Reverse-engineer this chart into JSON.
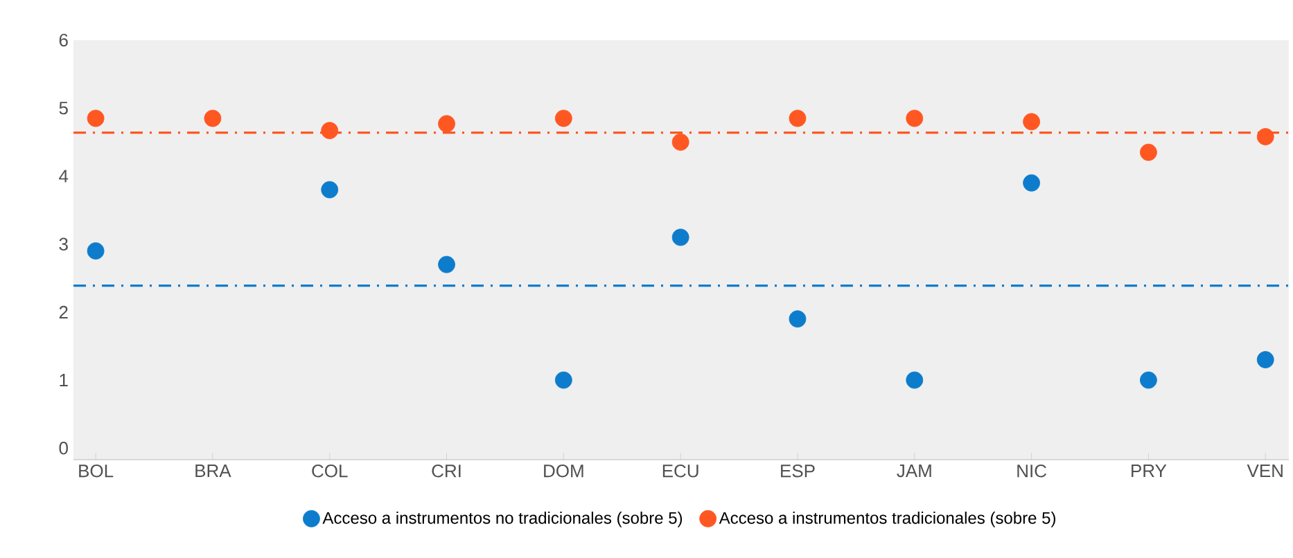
{
  "chart_data": {
    "type": "scatter",
    "categories": [
      "BOL",
      "BRA",
      "COL",
      "CRI",
      "DOM",
      "ECU",
      "ESP",
      "JAM",
      "NIC",
      "PRY",
      "VEN"
    ],
    "series": [
      {
        "name": "Acceso a instrumentos no tradicionales (sobre 5)",
        "color": "#0e7ccc",
        "values": [
          2.9,
          null,
          3.8,
          2.7,
          1.0,
          3.1,
          1.9,
          1.0,
          3.9,
          1.0,
          1.3
        ]
      },
      {
        "name": "Acceso a instrumentos tradicionales (sobre 5)",
        "color": "#ff5722",
        "values": [
          4.85,
          4.85,
          4.67,
          4.77,
          4.85,
          4.5,
          4.85,
          4.85,
          4.8,
          4.35,
          4.58
        ]
      }
    ],
    "ylim": [
      -0.17,
      6
    ],
    "yticks": [
      0,
      1,
      2,
      3,
      4,
      5,
      6
    ],
    "ref_lines": [
      {
        "axis": "y",
        "value": 4.64,
        "color": "#ff5722",
        "line_style": "dashdot"
      },
      {
        "axis": "y",
        "value": 2.39,
        "color": "#0e7ccc",
        "line_style": "dashdot"
      }
    ],
    "grid": false,
    "legend": "bottom"
  }
}
